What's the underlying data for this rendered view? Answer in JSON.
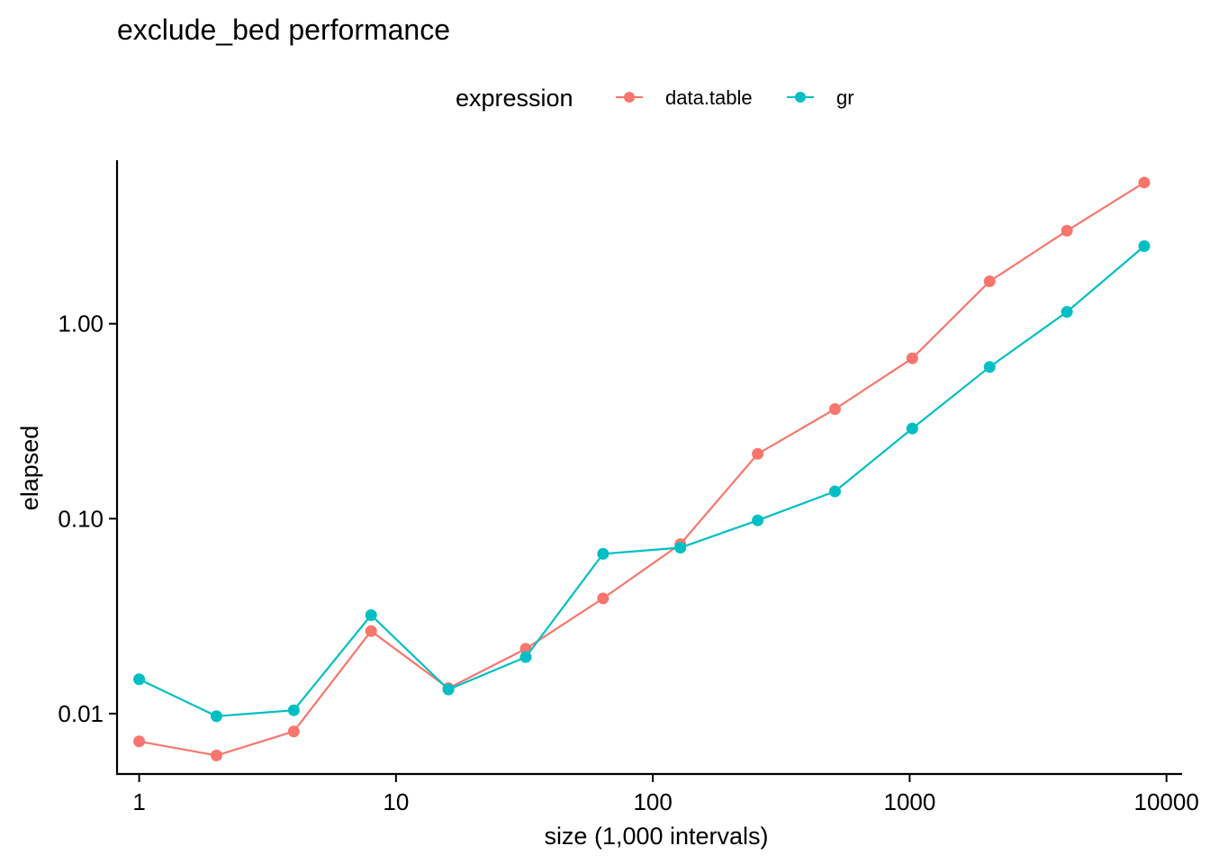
{
  "chart_data": {
    "type": "line",
    "title": "exclude_bed performance",
    "xlabel": "size (1,000 intervals)",
    "ylabel": "elapsed",
    "x_scale": "log10",
    "y_scale": "log10",
    "xlim": [
      0.82,
      11500
    ],
    "ylim": [
      0.0049,
      6.9
    ],
    "x_ticks": [
      1,
      10,
      100,
      1000,
      10000
    ],
    "x_tick_labels": [
      "1",
      "10",
      "100",
      "1000",
      "10000"
    ],
    "y_ticks": [
      0.01,
      0.1,
      1
    ],
    "y_tick_labels": [
      "0.01",
      "0.10",
      "1.00"
    ],
    "legend": {
      "title": "expression",
      "position": "top"
    },
    "grid": false,
    "x": [
      1,
      2,
      4,
      8,
      16,
      32,
      64,
      128,
      256,
      512,
      1024,
      2048,
      4096,
      8192
    ],
    "series": [
      {
        "name": "data.table",
        "color": "#F8766D",
        "values": [
          0.0072,
          0.0061,
          0.0081,
          0.0265,
          0.0135,
          0.0215,
          0.039,
          0.074,
          0.215,
          0.365,
          0.665,
          1.65,
          3.0,
          5.3
        ]
      },
      {
        "name": "gr",
        "color": "#00BFC4",
        "values": [
          0.015,
          0.0097,
          0.0104,
          0.032,
          0.0133,
          0.0195,
          0.066,
          0.071,
          0.098,
          0.138,
          0.29,
          0.6,
          1.15,
          2.5
        ]
      }
    ]
  }
}
